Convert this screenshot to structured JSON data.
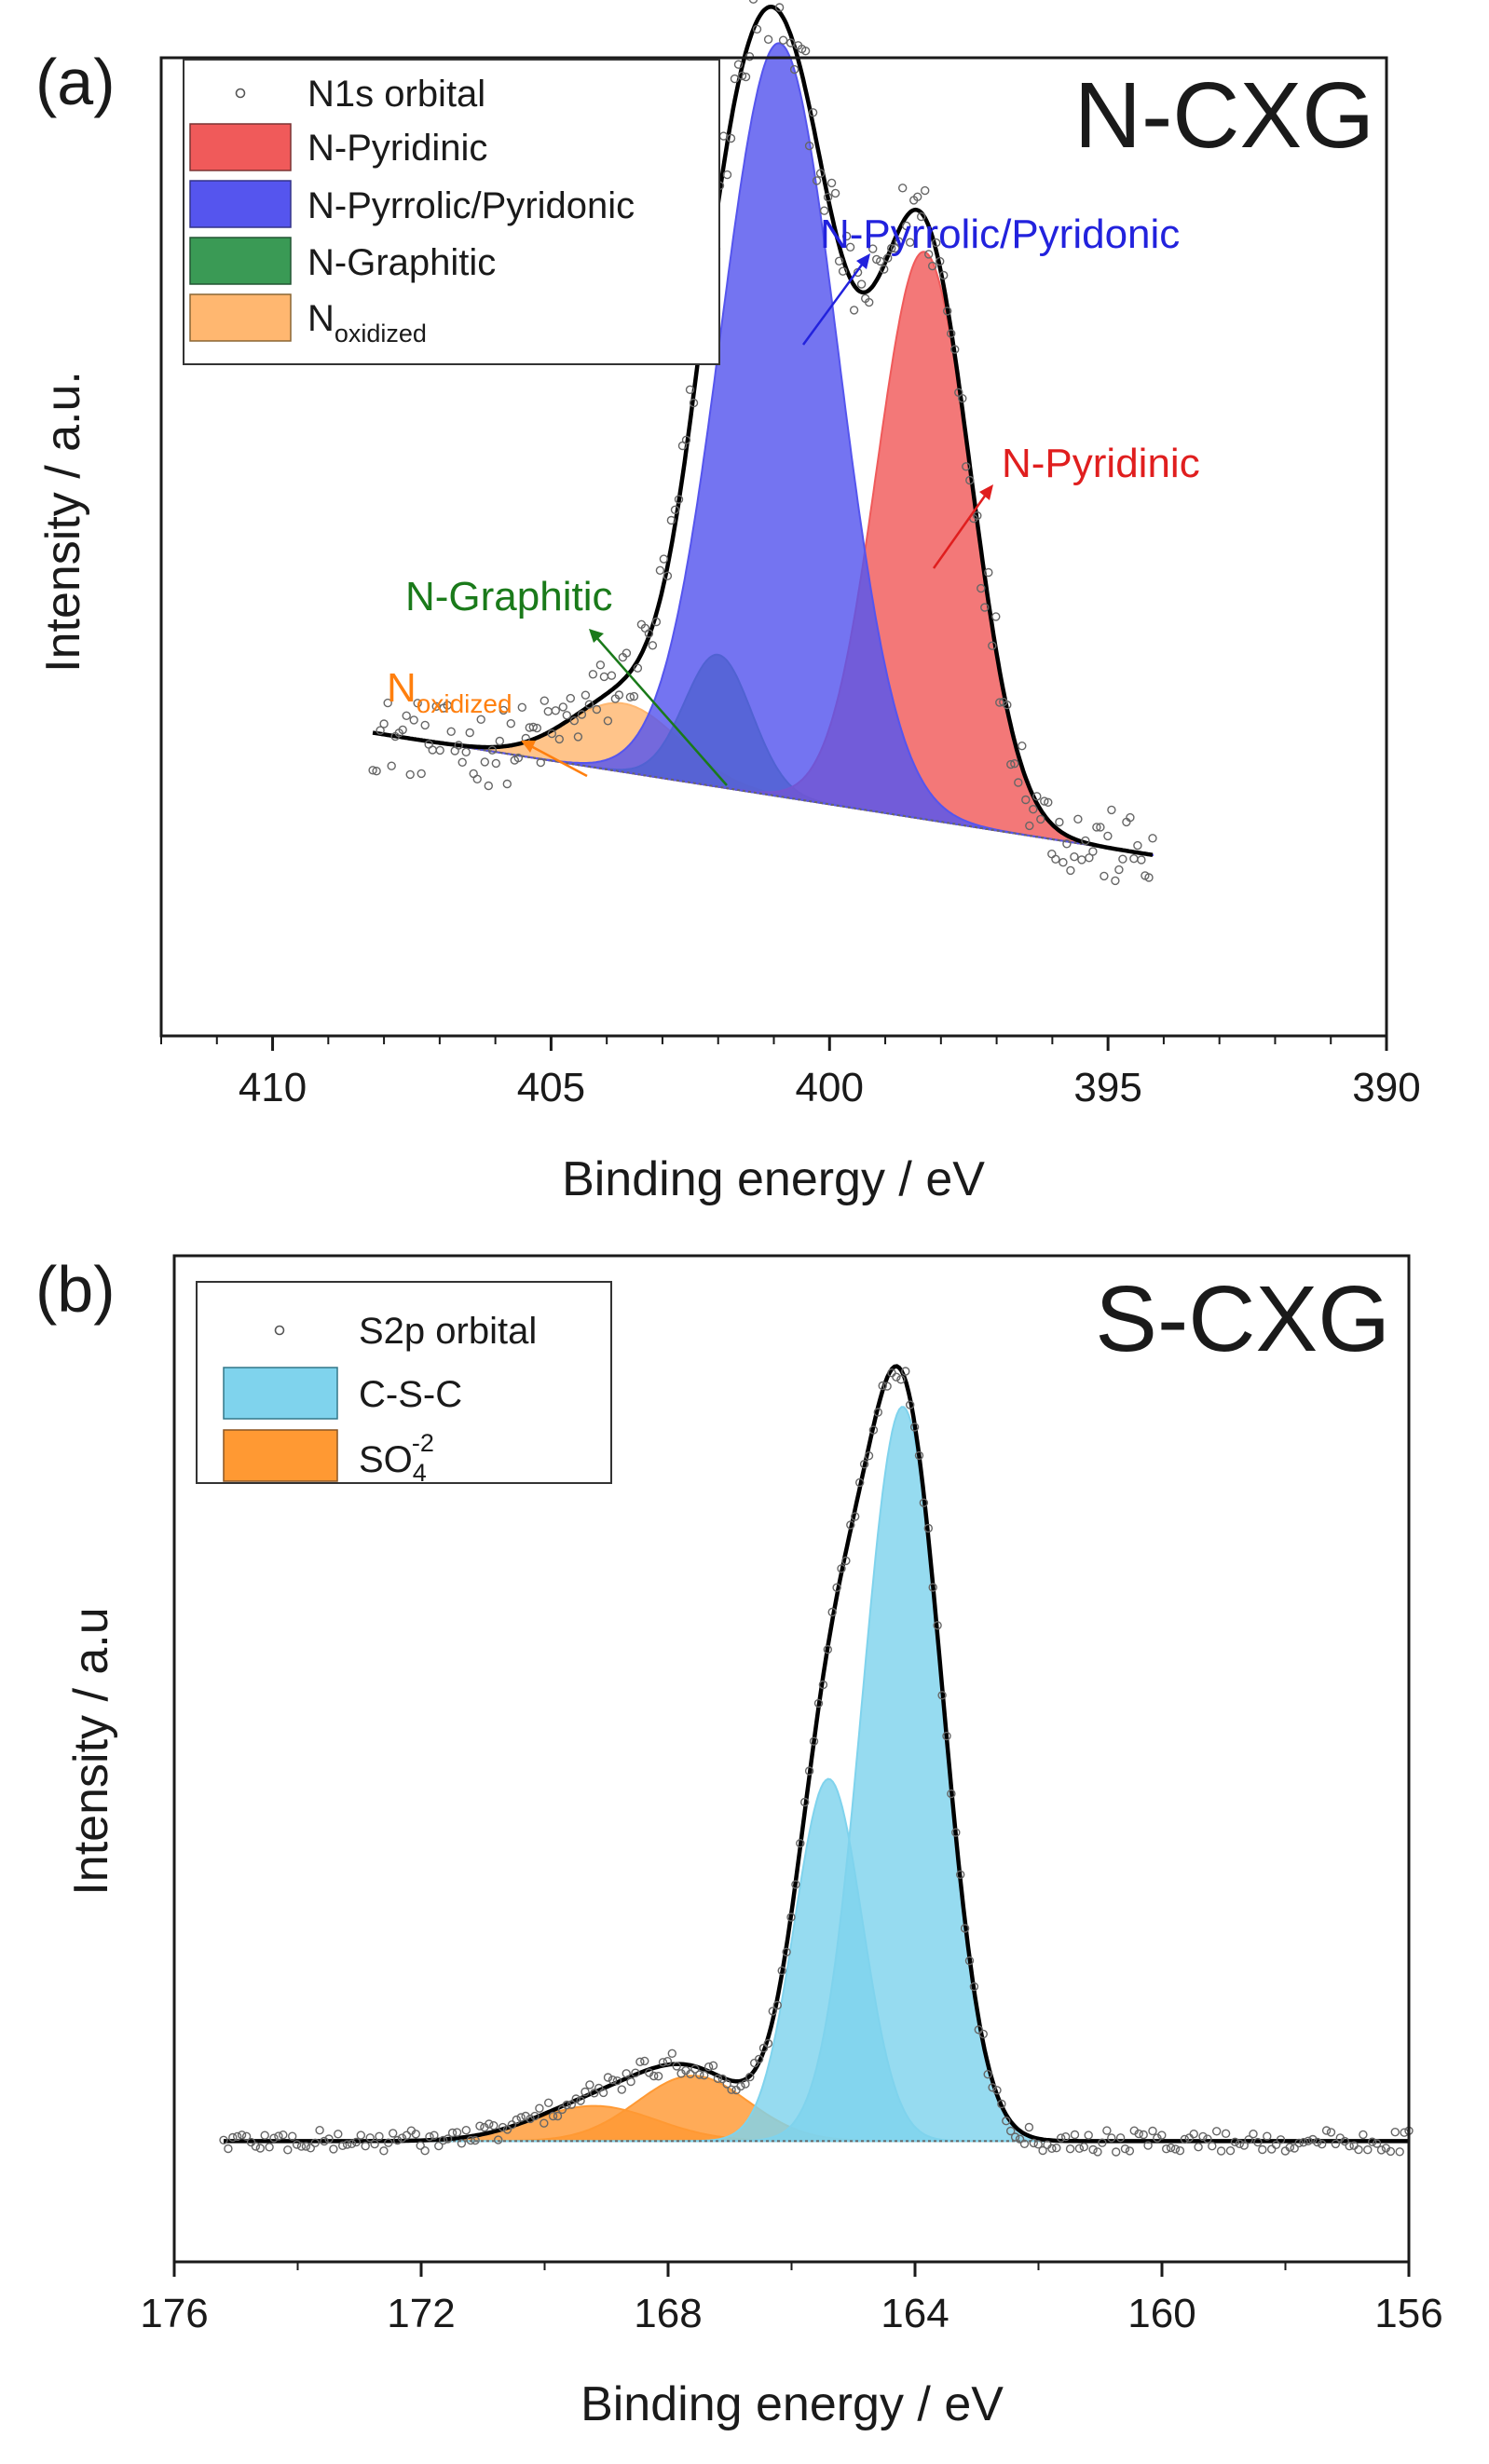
{
  "chart_data": [
    {
      "type": "area",
      "panel_label": "(a)",
      "title": "N-CXG",
      "xlabel": "Binding energy / eV",
      "ylabel": "Intensity / a.u.",
      "xlim": [
        412,
        390
      ],
      "ylim": [
        0,
        100
      ],
      "x_reversed": true,
      "xticks": [
        410,
        405,
        400,
        395,
        390
      ],
      "xtick_labels": [
        "410",
        "405",
        "400",
        "395",
        "390"
      ],
      "legend": {
        "position": "top-left",
        "entries": [
          {
            "label": "N1s orbital",
            "kind": "marker"
          },
          {
            "label": "N-Pyridinic",
            "kind": "fill",
            "color": "#f05a5a"
          },
          {
            "label": "N-Pyrrolic/Pyridonic",
            "kind": "fill",
            "color": "#5555ee"
          },
          {
            "label": "N-Graphitic",
            "kind": "fill",
            "color": "#3a9a55"
          },
          {
            "label_main": "N",
            "label_sub": "oxidized",
            "kind": "fill",
            "color": "#ffb770"
          }
        ]
      },
      "baseline": {
        "x_start": 408.2,
        "y_start": 31,
        "x_end": 394.2,
        "y_end": 18.5
      },
      "x_range": [
        408.2,
        394.2
      ],
      "series": [
        {
          "name": "N-Pyridinic",
          "color": "#f05a5a",
          "center": 398.3,
          "height": 58,
          "sigma": 0.85
        },
        {
          "name": "N-Pyrrolic/Pyridonic",
          "color": "#5555ee",
          "center": 400.9,
          "height": 77,
          "sigma": 1.05
        },
        {
          "name": "N-Graphitic",
          "color": "#3a9a55",
          "center": 402.0,
          "height": 13.5,
          "sigma": 0.6
        },
        {
          "name": "Noxidized",
          "color": "#ffb770",
          "center": 403.7,
          "height": 7,
          "sigma": 1.0
        }
      ],
      "annotations": [
        {
          "text": "N-Pyrrolic/Pyridonic",
          "color": "#2222dd",
          "x": 400.1,
          "y": 91
        },
        {
          "text": "N-Pyridinic",
          "color": "#e01e1e",
          "x": 397.0,
          "y": 66
        },
        {
          "text": "N-Graphitic",
          "color": "#1a7a1a",
          "x": 403.4,
          "y": 50
        },
        {
          "text_main": "N",
          "text_sub": "oxidized",
          "color": "#ff7f0e",
          "x": 405.2,
          "y": 40
        }
      ]
    },
    {
      "type": "area",
      "panel_label": "(b)",
      "title": "S-CXG",
      "xlabel": "Binding energy / eV",
      "ylabel": "Intensity / a.u",
      "xlim": [
        176,
        156
      ],
      "ylim": [
        0,
        100
      ],
      "x_reversed": true,
      "xticks": [
        176,
        172,
        168,
        164,
        160,
        156
      ],
      "xtick_labels": [
        "176",
        "172",
        "168",
        "164",
        "160",
        "156"
      ],
      "legend": {
        "position": "top-left",
        "entries": [
          {
            "label": "S2p orbital",
            "kind": "marker"
          },
          {
            "label": "C-S-C",
            "kind": "fill",
            "color": "#7fd3ed"
          },
          {
            "label_main": "SO",
            "label_sub": "4",
            "label_sup": "-2",
            "kind": "fill",
            "color": "#ff9933"
          }
        ]
      },
      "baseline_y": 12,
      "x_range": [
        175.2,
        156
      ],
      "series": [
        {
          "name": "C-S-C",
          "color": "#7fd3ed",
          "center": 164.2,
          "height": 73,
          "sigma": 0.65
        },
        {
          "name": "C-S-C",
          "color": "#7fd3ed",
          "center": 165.4,
          "height": 36,
          "sigma": 0.55
        },
        {
          "name": "SO4-2",
          "color": "#ff9933",
          "center": 167.6,
          "height": 6.5,
          "sigma": 0.9
        },
        {
          "name": "SO4-2",
          "color": "#ff9933",
          "center": 169.2,
          "height": 3.5,
          "sigma": 1.0
        }
      ]
    }
  ]
}
